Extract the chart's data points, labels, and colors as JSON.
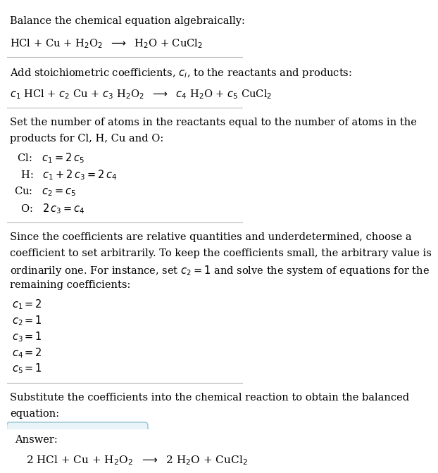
{
  "bg_color": "#ffffff",
  "text_color": "#000000",
  "answer_box_color": "#e8f4f8",
  "answer_box_edge": "#a0c8d8",
  "title": "Balance the chemical equation algebraically:",
  "eq1": "HCl + Cu + H$_2$O$_2$  $\\longrightarrow$  H$_2$O + CuCl$_2$",
  "section2_title": "Add stoichiometric coefficients, $c_i$, to the reactants and products:",
  "eq2": "$c_1$ HCl + $c_2$ Cu + $c_3$ H$_2$O$_2$  $\\longrightarrow$  $c_4$ H$_2$O + $c_5$ CuCl$_2$",
  "section3_title_line1": "Set the number of atoms in the reactants equal to the number of atoms in the",
  "section3_title_line2": "products for Cl, H, Cu and O:",
  "atoms_lines": [
    " Cl:   $c_1 = 2\\,c_5$",
    "  H:   $c_1 + 2\\,c_3 = 2\\,c_4$",
    "Cu:   $c_2 = c_5$",
    "  O:   $2\\,c_3 = c_4$"
  ],
  "section4_line1": "Since the coefficients are relative quantities and underdetermined, choose a",
  "section4_line2": "coefficient to set arbitrarily. To keep the coefficients small, the arbitrary value is",
  "section4_line3": "ordinarily one. For instance, set $c_2 = 1$ and solve the system of equations for the",
  "section4_line4": "remaining coefficients:",
  "solution_lines": [
    "$c_1 = 2$",
    "$c_2 = 1$",
    "$c_3 = 1$",
    "$c_4 = 2$",
    "$c_5 = 1$"
  ],
  "section5_line1": "Substitute the coefficients into the chemical reaction to obtain the balanced",
  "section5_line2": "equation:",
  "answer_label": "Answer:",
  "answer_eq": "2 HCl + Cu + H$_2$O$_2$  $\\longrightarrow$  2 H$_2$O + CuCl$_2$",
  "fontsize": 10.5,
  "line_color": "#bbbbbb"
}
